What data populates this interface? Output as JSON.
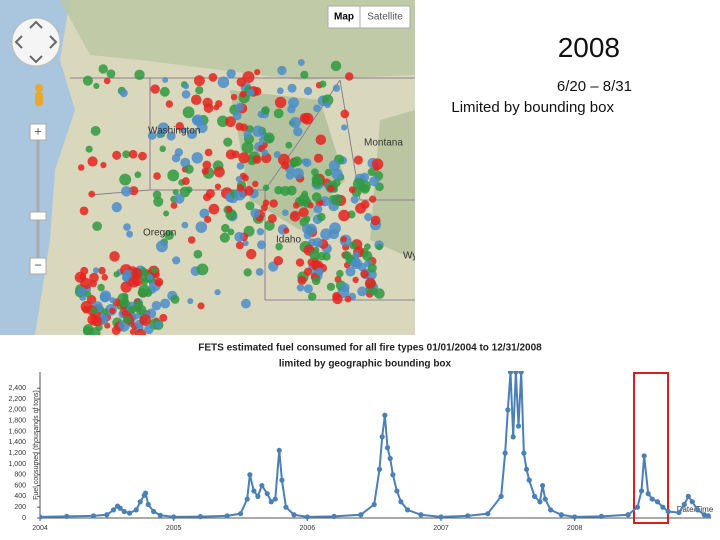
{
  "slide": {
    "title": "2008",
    "date_range": "6/20 – 8/31",
    "note": "Limited by bounding box"
  },
  "map": {
    "buttons": [
      "Map",
      "Satellite"
    ],
    "zoom_in": "+",
    "zoom_out": "−",
    "labels": [
      "Washington",
      "Montana",
      "Oregon",
      "Idaho",
      "Wy"
    ]
  },
  "chart_data": {
    "type": "line",
    "title": "FETS estimated fuel consumed for all fire types 01/01/2004 to 12/31/2008",
    "subtitle": "limited by geographic bounding box",
    "y_label": "Fuel consumed (thousands of tons)",
    "x_label": "Date/Time",
    "xlim": [
      2004,
      2009.02
    ],
    "xticks": [
      2004,
      2005,
      2006,
      2007,
      2008
    ],
    "ylim": [
      0,
      2700
    ],
    "yticks": [
      0,
      200,
      400,
      600,
      800,
      {
        "value": 1000,
        "label": "1,000"
      },
      {
        "value": 1200,
        "label": "1,200"
      },
      {
        "value": 1400,
        "label": "1,400"
      },
      {
        "value": 1600,
        "label": "1,600"
      },
      {
        "value": 1800,
        "label": "1,800"
      },
      {
        "value": 2000,
        "label": "2,000"
      },
      {
        "value": 2200,
        "label": "2,200"
      },
      {
        "value": 2400,
        "label": "2,400"
      }
    ],
    "grid": false,
    "series": [
      {
        "name": "Fuel consumed",
        "color": "#4a80b6",
        "x": [
          2004.0,
          2004.2,
          2004.4,
          2004.5,
          2004.55,
          2004.58,
          2004.6,
          2004.63,
          2004.67,
          2004.72,
          2004.75,
          2004.78,
          2004.79,
          2004.81,
          2004.85,
          2004.9,
          2005.0,
          2005.2,
          2005.4,
          2005.5,
          2005.55,
          2005.57,
          2005.6,
          2005.63,
          2005.66,
          2005.7,
          2005.73,
          2005.76,
          2005.79,
          2005.81,
          2005.84,
          2005.9,
          2006.0,
          2006.2,
          2006.4,
          2006.5,
          2006.54,
          2006.56,
          2006.58,
          2006.6,
          2006.62,
          2006.64,
          2006.67,
          2006.7,
          2006.75,
          2006.85,
          2007.0,
          2007.2,
          2007.35,
          2007.45,
          2007.48,
          2007.5,
          2007.52,
          2007.54,
          2007.56,
          2007.58,
          2007.6,
          2007.62,
          2007.64,
          2007.66,
          2007.7,
          2007.74,
          2007.76,
          2007.78,
          2007.82,
          2007.9,
          2008.0,
          2008.2,
          2008.4,
          2008.47,
          2008.5,
          2008.52,
          2008.55,
          2008.58,
          2008.62,
          2008.66,
          2008.7,
          2008.78,
          2008.82,
          2008.85,
          2008.88,
          2008.92,
          2008.97,
          2009.0
        ],
        "values": [
          20,
          30,
          40,
          60,
          150,
          220,
          180,
          120,
          90,
          150,
          300,
          420,
          460,
          250,
          120,
          50,
          20,
          25,
          40,
          80,
          350,
          800,
          500,
          400,
          600,
          450,
          300,
          350,
          1250,
          700,
          200,
          60,
          20,
          30,
          60,
          250,
          900,
          1500,
          1900,
          1300,
          1100,
          800,
          500,
          300,
          150,
          60,
          20,
          40,
          80,
          400,
          1200,
          2000,
          2700,
          1500,
          2700,
          1700,
          2700,
          1200,
          900,
          700,
          400,
          300,
          600,
          350,
          150,
          60,
          20,
          30,
          60,
          200,
          500,
          1150,
          450,
          350,
          300,
          200,
          120,
          100,
          250,
          400,
          300,
          150,
          60,
          40
        ]
      }
    ]
  }
}
